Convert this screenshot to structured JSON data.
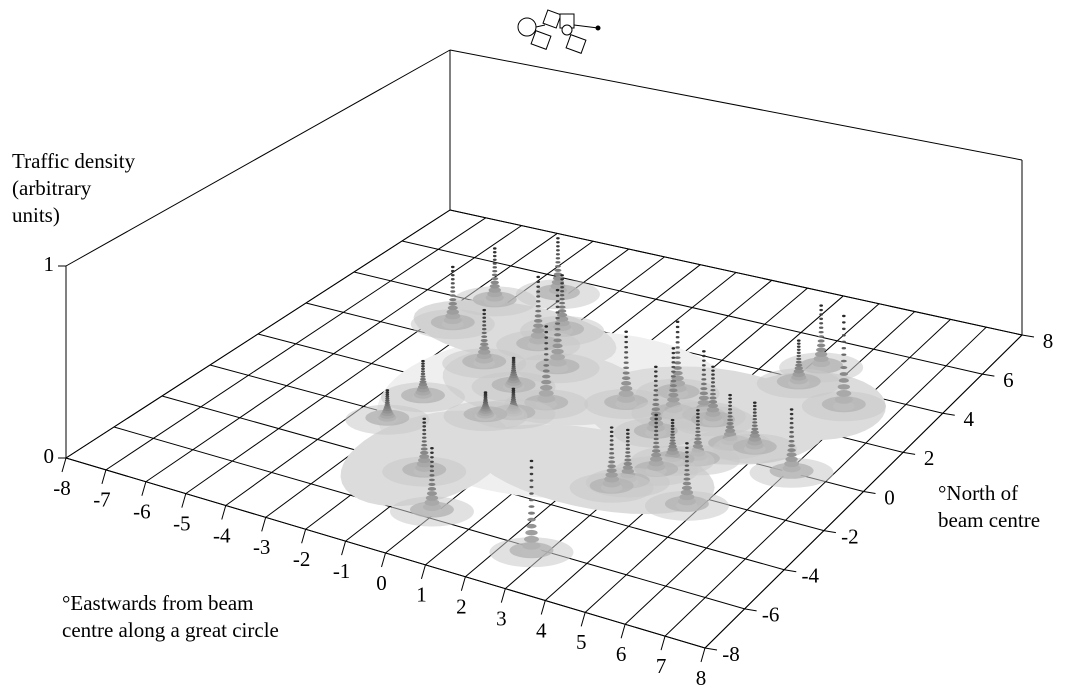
{
  "chart_data": {
    "type": "surface3d",
    "zlabel": [
      "Traffic density",
      "(arbitrary",
      "units)"
    ],
    "xlabel": [
      "°Eastwards from beam",
      "centre along a great circle"
    ],
    "ylabel": [
      "°North of",
      "beam centre"
    ],
    "xlim": [
      -8,
      8
    ],
    "ylim": [
      -8,
      8
    ],
    "zlim": [
      0,
      1
    ],
    "xticks": [
      -8,
      -7,
      -6,
      -5,
      -4,
      -3,
      -2,
      -1,
      0,
      1,
      2,
      3,
      4,
      5,
      6,
      7,
      8
    ],
    "yticks": [
      -8,
      -6,
      -4,
      -2,
      0,
      2,
      4,
      6,
      8
    ],
    "zticks": [
      0,
      1
    ],
    "grid": true,
    "color": "#555555",
    "peaks": [
      {
        "x": -4.5,
        "y": 2.7,
        "z": 0.33
      },
      {
        "x": -4.3,
        "y": 4.2,
        "z": 0.31
      },
      {
        "x": -3.2,
        "y": 5.2,
        "z": 0.33
      },
      {
        "x": -2.2,
        "y": 2.7,
        "z": 0.39
      },
      {
        "x": -2.1,
        "y": 3.6,
        "z": 0.32
      },
      {
        "x": -2.8,
        "y": 1.3,
        "z": 0.3
      },
      {
        "x": -0.5,
        "y": 0.2,
        "z": 0.43
      },
      {
        "x": -1.2,
        "y": 1.9,
        "z": 0.44
      },
      {
        "x": -1.6,
        "y": 0.6,
        "z": 0.16
      },
      {
        "x": -3.1,
        "y": -0.9,
        "z": 0.2
      },
      {
        "x": -3.2,
        "y": -2.3,
        "z": 0.16
      },
      {
        "x": -1.4,
        "y": -1.0,
        "z": 0.13
      },
      {
        "x": -0.9,
        "y": -0.6,
        "z": 0.14
      },
      {
        "x": -1.2,
        "y": -4.1,
        "z": 0.28
      },
      {
        "x": -0.1,
        "y": -5.7,
        "z": 0.33
      },
      {
        "x": 2.7,
        "y": -6.2,
        "z": 0.47
      },
      {
        "x": 1.1,
        "y": 1.1,
        "z": 0.4
      },
      {
        "x": 2.4,
        "y": 0.2,
        "z": 0.36
      },
      {
        "x": 1.9,
        "y": 2.1,
        "z": 0.4
      },
      {
        "x": 2.3,
        "y": 1.2,
        "z": 0.36
      },
      {
        "x": 3.0,
        "y": 1.4,
        "z": 0.36
      },
      {
        "x": 3.3,
        "y": 1.3,
        "z": 0.3
      },
      {
        "x": 4.2,
        "y": 0.5,
        "z": 0.27
      },
      {
        "x": 4.8,
        "y": 0.6,
        "z": 0.25
      },
      {
        "x": 6.1,
        "y": 0.0,
        "z": 0.34
      },
      {
        "x": 4.2,
        "y": 3.8,
        "z": 0.24
      },
      {
        "x": 4.3,
        "y": 4.7,
        "z": 0.35
      },
      {
        "x": 5.7,
        "y": 3.3,
        "z": 0.5
      },
      {
        "x": 2.8,
        "y": -2.6,
        "z": 0.32
      },
      {
        "x": 3.0,
        "y": -2.2,
        "z": 0.28
      },
      {
        "x": 3.4,
        "y": -0.8,
        "z": 0.22
      },
      {
        "x": 4.7,
        "y": -2.5,
        "z": 0.33
      },
      {
        "x": 3.9,
        "y": -0.5,
        "z": 0.27
      },
      {
        "x": 3.3,
        "y": -1.4,
        "z": 0.3
      }
    ]
  }
}
